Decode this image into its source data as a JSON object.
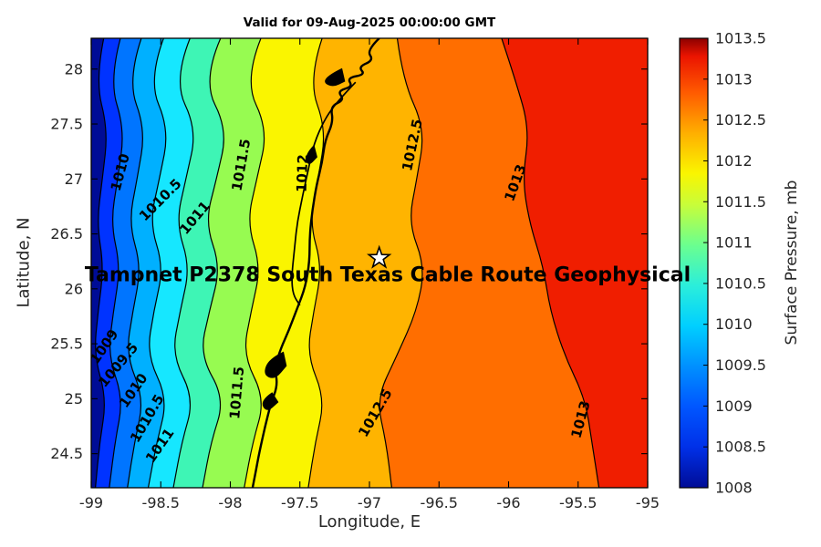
{
  "figure": {
    "title": "Valid for 09-Aug-2025 00:00:00 GMT",
    "xlabel": "Longitude, E",
    "ylabel": "Latitude, N",
    "annotation": "Tampnet P2378 South Texas Cable Route Geophysical"
  },
  "chart_data": {
    "type": "heatmap",
    "subtype": "filled-contour-map",
    "title": "Valid for 09-Aug-2025 00:00:00 GMT",
    "xlabel": "Longitude, E",
    "ylabel": "Latitude, N",
    "xlim": [
      -99,
      -95
    ],
    "ylim": [
      24.19,
      28.28
    ],
    "x_ticks": [
      -99,
      -98.5,
      -98,
      -97.5,
      -97,
      -96.5,
      -96,
      -95.5,
      -95
    ],
    "y_ticks": [
      28,
      27.5,
      27,
      26.5,
      26,
      25.5,
      25,
      24.5
    ],
    "grid": false,
    "band_colors": [
      "#000C96",
      "#0033FF",
      "#0075FF",
      "#00B0FF",
      "#16E7FF",
      "#3EF5B5",
      "#97FB51",
      "#FAF500",
      "#FFB400",
      "#FF6E00",
      "#F01E00"
    ],
    "contour_lats": [
      28.28,
      27.9,
      27.45,
      27.0,
      26.6,
      26.2,
      25.8,
      25.4,
      25.0,
      24.6,
      24.19
    ],
    "contours": [
      {
        "level": 1008.5,
        "lons": [
          -98.91,
          -98.97,
          -98.88,
          -98.92,
          -98.96,
          -98.91,
          -98.95,
          -98.98,
          -98.89,
          -98.94,
          -98.97
        ]
      },
      {
        "level": 1009,
        "lons": [
          -98.79,
          -98.87,
          -98.76,
          -98.81,
          -98.86,
          -98.79,
          -98.84,
          -98.88,
          -98.77,
          -98.83,
          -98.87
        ]
      },
      {
        "level": 1009.5,
        "lons": [
          -98.64,
          -98.74,
          -98.61,
          -98.67,
          -98.73,
          -98.64,
          -98.7,
          -98.75,
          -98.62,
          -98.69,
          -98.74
        ]
      },
      {
        "level": 1010,
        "lons": [
          -98.48,
          -98.59,
          -98.44,
          -98.51,
          -98.58,
          -98.48,
          -98.55,
          -98.6,
          -98.45,
          -98.53,
          -98.59
        ]
      },
      {
        "level": 1010.5,
        "lons": [
          -98.29,
          -98.41,
          -98.24,
          -98.32,
          -98.39,
          -98.29,
          -98.36,
          -98.42,
          -98.26,
          -98.35,
          -98.41
        ]
      },
      {
        "level": 1011,
        "lons": [
          -98.07,
          -98.2,
          -98.02,
          -98.1,
          -98.18,
          -98.07,
          -98.15,
          -98.22,
          -98.04,
          -98.14,
          -98.2
        ]
      },
      {
        "level": 1011.5,
        "lons": [
          -97.78,
          -97.9,
          -97.73,
          -97.81,
          -97.88,
          -97.78,
          -97.85,
          -97.91,
          -97.75,
          -97.84,
          -97.9
        ]
      },
      {
        "level": 1012,
        "lons": [
          -97.34,
          -97.44,
          -97.31,
          -97.37,
          -97.43,
          -97.34,
          -97.4,
          -97.45,
          -97.32,
          -97.39,
          -97.44
        ]
      },
      {
        "level": 1012.5,
        "lons": [
          -96.8,
          -96.76,
          -96.6,
          -96.66,
          -96.72,
          -96.6,
          -96.66,
          -96.8,
          -96.95,
          -96.88,
          -96.84
        ]
      },
      {
        "level": 1013,
        "lons": [
          -96.05,
          -95.95,
          -95.85,
          -95.9,
          -95.85,
          -95.75,
          -95.7,
          -95.6,
          -95.45,
          -95.4,
          -95.35
        ]
      }
    ],
    "contour_labels": [
      {
        "text": "1010",
        "lon": -98.76,
        "lat": 27.05,
        "angle": -75
      },
      {
        "text": "1010.5",
        "lon": -98.48,
        "lat": 26.78,
        "angle": -45
      },
      {
        "text": "1011",
        "lon": -98.23,
        "lat": 26.62,
        "angle": -50
      },
      {
        "text": "1011.5",
        "lon": -97.89,
        "lat": 27.12,
        "angle": -80
      },
      {
        "text": "1012",
        "lon": -97.45,
        "lat": 27.05,
        "angle": -88
      },
      {
        "text": "1012.5",
        "lon": -96.66,
        "lat": 27.3,
        "angle": -78
      },
      {
        "text": "1013",
        "lon": -95.92,
        "lat": 26.95,
        "angle": -70
      },
      {
        "text": "1009",
        "lon": -98.88,
        "lat": 25.45,
        "angle": -55
      },
      {
        "text": "1009.5",
        "lon": -98.78,
        "lat": 25.28,
        "angle": -50
      },
      {
        "text": "1010",
        "lon": -98.67,
        "lat": 25.05,
        "angle": -55
      },
      {
        "text": "1010.5",
        "lon": -98.57,
        "lat": 24.8,
        "angle": -60
      },
      {
        "text": "1011",
        "lon": -98.48,
        "lat": 24.55,
        "angle": -55
      },
      {
        "text": "1011.5",
        "lon": -97.92,
        "lat": 25.05,
        "angle": -85
      },
      {
        "text": "1012.5",
        "lon": -96.93,
        "lat": 24.85,
        "angle": -60
      },
      {
        "text": "1013",
        "lon": -95.45,
        "lat": 24.8,
        "angle": -75
      }
    ],
    "coastline": [
      [
        -96.93,
        28.28
      ],
      [
        -97.02,
        28.17
      ],
      [
        -96.97,
        28.08
      ],
      [
        -97.08,
        28.02
      ],
      [
        -97.03,
        27.95
      ],
      [
        -97.16,
        27.92
      ],
      [
        -97.12,
        27.84
      ],
      [
        -97.23,
        27.8
      ],
      [
        -97.18,
        27.72
      ],
      [
        -97.28,
        27.66
      ],
      [
        -97.26,
        27.52
      ],
      [
        -97.32,
        27.35
      ],
      [
        -97.34,
        27.15
      ],
      [
        -97.38,
        26.95
      ],
      [
        -97.41,
        26.72
      ],
      [
        -97.43,
        26.48
      ],
      [
        -97.43,
        26.25
      ],
      [
        -97.46,
        26.02
      ],
      [
        -97.52,
        25.82
      ],
      [
        -97.58,
        25.62
      ],
      [
        -97.64,
        25.45
      ],
      [
        -97.68,
        25.28
      ],
      [
        -97.66,
        25.12
      ],
      [
        -97.71,
        24.95
      ],
      [
        -97.75,
        24.75
      ],
      [
        -97.79,
        24.52
      ],
      [
        -97.82,
        24.32
      ],
      [
        -97.84,
        24.19
      ]
    ],
    "lagoon": [
      [
        -97.1,
        27.88
      ],
      [
        -97.22,
        27.72
      ],
      [
        -97.32,
        27.55
      ],
      [
        -97.4,
        27.32
      ],
      [
        -97.44,
        27.08
      ],
      [
        -97.48,
        26.85
      ],
      [
        -97.52,
        26.6
      ],
      [
        -97.54,
        26.35
      ],
      [
        -97.56,
        26.1
      ],
      [
        -97.55,
        25.95
      ],
      [
        -97.5,
        25.85
      ]
    ],
    "coast_blobs": [
      [
        [
          -97.2,
          28.0
        ],
        [
          -97.28,
          27.95
        ],
        [
          -97.33,
          27.88
        ],
        [
          -97.26,
          27.84
        ],
        [
          -97.18,
          27.89
        ]
      ],
      [
        [
          -97.4,
          27.3
        ],
        [
          -97.46,
          27.22
        ],
        [
          -97.44,
          27.12
        ],
        [
          -97.38,
          27.2
        ]
      ],
      [
        [
          -97.62,
          25.42
        ],
        [
          -97.72,
          25.36
        ],
        [
          -97.76,
          25.22
        ],
        [
          -97.68,
          25.18
        ],
        [
          -97.6,
          25.3
        ]
      ],
      [
        [
          -97.7,
          25.05
        ],
        [
          -97.78,
          24.98
        ],
        [
          -97.74,
          24.88
        ],
        [
          -97.66,
          24.97
        ]
      ]
    ],
    "star": {
      "lon": -96.93,
      "lat": 26.28
    },
    "colorbar": {
      "label": "Surface Pressure, mb",
      "range": [
        1008,
        1013.5
      ],
      "ticks": [
        1008,
        1008.5,
        1009,
        1009.5,
        1010,
        1010.5,
        1011,
        1011.5,
        1012,
        1012.5,
        1013,
        1013.5
      ],
      "gradient": [
        [
          0,
          "#000C96"
        ],
        [
          0.09,
          "#0030E8"
        ],
        [
          0.18,
          "#0056FF"
        ],
        [
          0.27,
          "#0090FF"
        ],
        [
          0.36,
          "#00CFFF"
        ],
        [
          0.45,
          "#2BEEDB"
        ],
        [
          0.54,
          "#6BFF8F"
        ],
        [
          0.63,
          "#C8FD39"
        ],
        [
          0.7,
          "#FAF500"
        ],
        [
          0.79,
          "#FFAE00"
        ],
        [
          0.88,
          "#FF5A00"
        ],
        [
          0.96,
          "#EB1400"
        ],
        [
          1,
          "#8C0000"
        ]
      ]
    }
  }
}
